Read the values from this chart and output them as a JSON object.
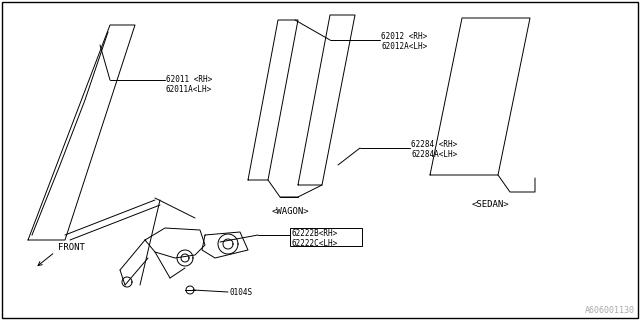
{
  "bg_color": "#ffffff",
  "border_color": "#000000",
  "line_color": "#000000",
  "text_color": "#000000",
  "fig_width": 6.4,
  "fig_height": 3.2,
  "dpi": 100,
  "diagram_id": "A606001130",
  "labels": {
    "part_62011": "62011 <RH>\n62011A<LH>",
    "part_62012": "62012 <RH>\n62012A<LH>",
    "part_62284": "62284 <RH>\n62284A<LH>",
    "part_62222B": "62222B<RH>\n62222C<LH>",
    "part_0104S": "0104S",
    "wagon": "<WAGON>",
    "sedan": "<SEDAN>",
    "front_arrow": "<-FRONT"
  },
  "font_size_labels": 5.5,
  "font_size_diagram_id": 6,
  "font_size_wagon_sedan": 6.5,
  "font_size_front": 6.5
}
